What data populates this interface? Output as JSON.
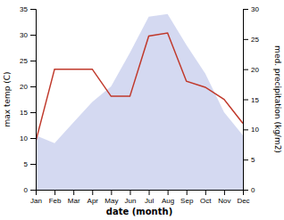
{
  "chart_data": {
    "type": "line",
    "categories": [
      "Jan",
      "Feb",
      "Mar",
      "Apr",
      "May",
      "Jun",
      "Jul",
      "Aug",
      "Sep",
      "Oct",
      "Nov",
      "Dec"
    ],
    "series": [
      {
        "type": "area",
        "color": "#b8bfe8",
        "values": [
          10.5,
          9.0,
          13.0,
          17.0,
          20.0,
          26.5,
          33.5,
          34.0,
          28.0,
          22.5,
          15.0,
          10.5
        ]
      },
      {
        "type": "line",
        "color": "#c0392b",
        "axis": "y2",
        "values": [
          8.0,
          20.0,
          20.0,
          20.0,
          15.5,
          15.5,
          25.5,
          26.0,
          18.0,
          17.0,
          15.0,
          11.0
        ]
      }
    ],
    "xlabel": "date (month)",
    "ylabel": "max temp (C)",
    "y2label": "med. precipitation (kg/m2)",
    "ylim": [
      0,
      35
    ],
    "yticks": [
      0,
      5,
      10,
      15,
      20,
      25,
      30,
      35
    ],
    "y2lim": [
      0,
      30
    ],
    "y2ticks": [
      0,
      5,
      10,
      15,
      20,
      25,
      30
    ],
    "grid": false
  }
}
